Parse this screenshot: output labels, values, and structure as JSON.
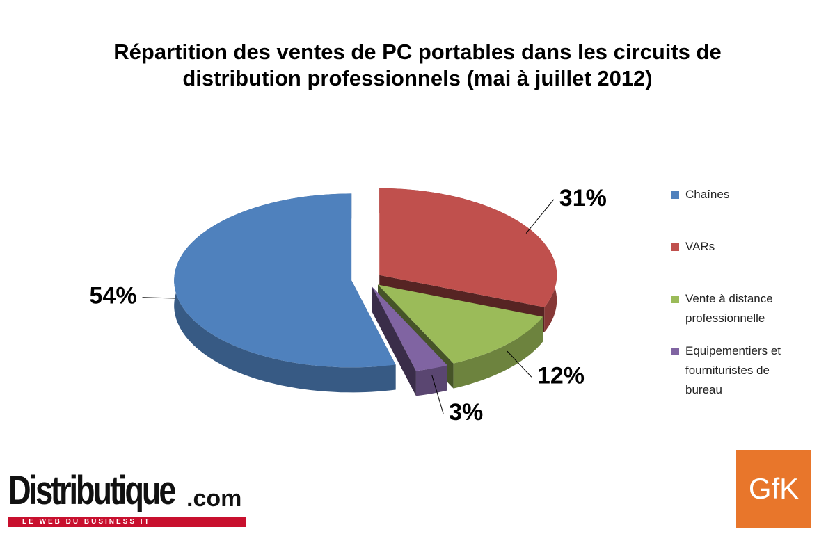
{
  "chart_data": {
    "type": "pie3d",
    "title": "Répartition des ventes de PC portables dans les circuits de distribution professionnels (mai à juillet 2012)",
    "categories": [
      "Chaînes",
      "VARs",
      "Vente à distance professionnelle",
      "Equipementiers et fournituristes de bureau"
    ],
    "values": [
      54,
      31,
      12,
      3
    ],
    "value_labels": [
      "54%",
      "31%",
      "12%",
      "3%"
    ],
    "colors": [
      "#4f81bd",
      "#c0504d",
      "#9bbb59",
      "#8064a2"
    ],
    "legend": "right"
  },
  "branding": {
    "site": "Distributique",
    "site_suffix": ".com",
    "tagline": "LE WEB DU BUSINESS IT",
    "source": "GfK"
  }
}
